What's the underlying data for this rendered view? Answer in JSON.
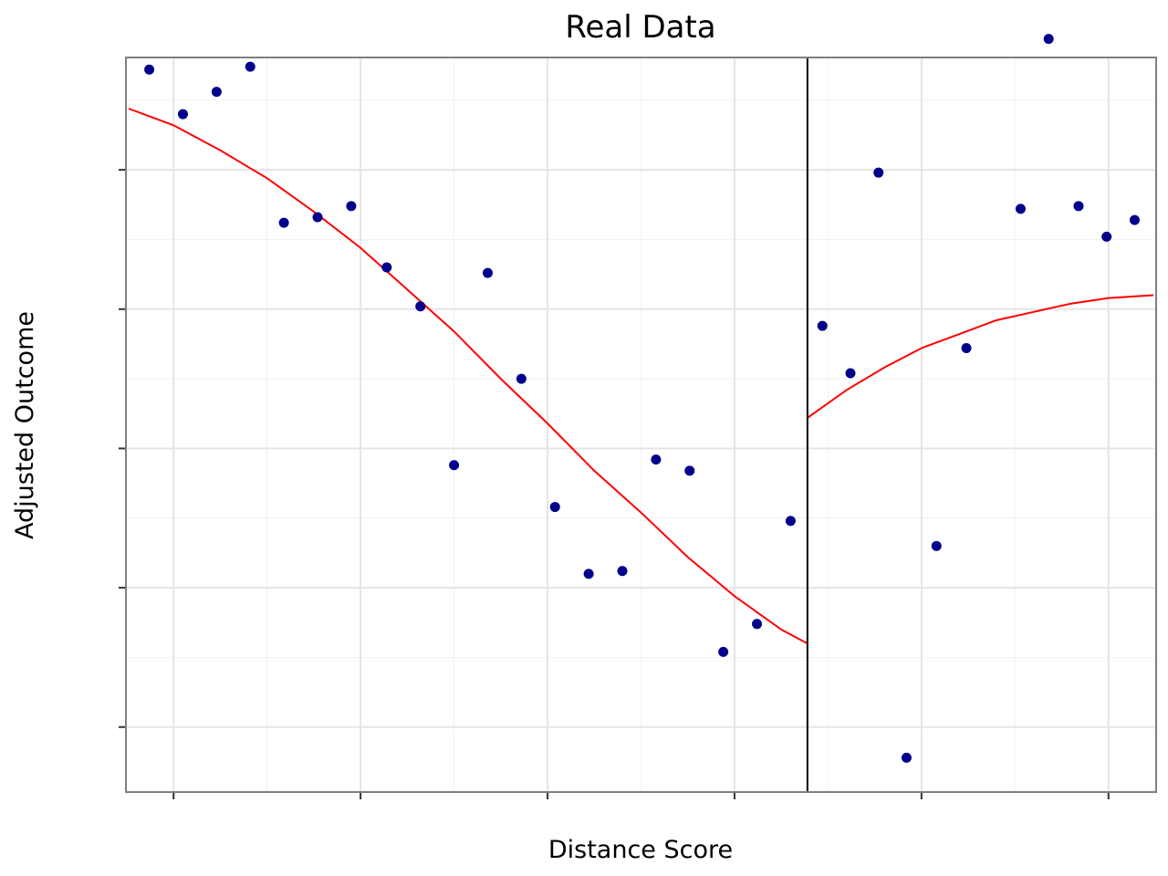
{
  "chart_data": {
    "type": "scatter",
    "title": "Real Data",
    "xlabel": "Distance Score",
    "ylabel": "Adjusted Outcome",
    "tick_labels_shown": false,
    "xlim": [
      -1.25,
      4.25
    ],
    "ylim": [
      -0.23,
      2.4
    ],
    "x_major_ticks": [
      -1,
      0,
      1,
      2,
      3,
      4
    ],
    "y_major_ticks": [
      0,
      0.5,
      1,
      1.5,
      2,
      2.5
    ],
    "cutoff_x": 2.39,
    "grid": true,
    "colors": {
      "points": "#00008b",
      "fit": "#ff0000",
      "cutoff": "#000000",
      "grid": "#e5e5e5",
      "panel_border": "#7f7f7f"
    },
    "series": [
      {
        "type": "scatter",
        "x": [
          -1.13,
          -0.95,
          -0.77,
          -0.59,
          -0.41,
          -0.23,
          -0.05,
          0.14,
          0.32,
          0.5,
          0.68,
          0.86,
          1.04,
          1.22,
          1.4,
          1.58,
          1.76,
          1.94,
          2.12,
          2.3,
          2.47,
          2.62,
          2.77,
          2.92,
          3.08,
          3.24,
          3.53,
          3.68,
          3.84,
          3.99,
          4.14
        ],
        "y": [
          2.36,
          2.2,
          2.28,
          2.37,
          1.81,
          1.83,
          1.87,
          1.65,
          1.51,
          0.94,
          1.63,
          1.25,
          0.79,
          0.55,
          0.56,
          0.96,
          0.92,
          0.27,
          0.37,
          0.74,
          1.44,
          1.27,
          1.99,
          -0.11,
          0.65,
          1.36,
          1.86,
          2.47,
          1.87,
          1.76,
          1.82
        ]
      },
      {
        "type": "line",
        "name": "fit-left",
        "x": [
          -1.24,
          -1.0,
          -0.75,
          -0.5,
          -0.25,
          0.0,
          0.25,
          0.5,
          0.75,
          1.0,
          1.25,
          1.5,
          1.75,
          2.0,
          2.25,
          2.39
        ],
        "y": [
          2.22,
          2.16,
          2.07,
          1.97,
          1.85,
          1.72,
          1.57,
          1.42,
          1.25,
          1.09,
          0.92,
          0.77,
          0.61,
          0.47,
          0.35,
          0.3
        ]
      },
      {
        "type": "line",
        "name": "fit-right",
        "x": [
          2.39,
          2.6,
          2.8,
          3.0,
          3.2,
          3.4,
          3.6,
          3.8,
          4.0,
          4.24
        ],
        "y": [
          1.11,
          1.21,
          1.29,
          1.36,
          1.41,
          1.46,
          1.49,
          1.52,
          1.54,
          1.55
        ]
      }
    ]
  }
}
